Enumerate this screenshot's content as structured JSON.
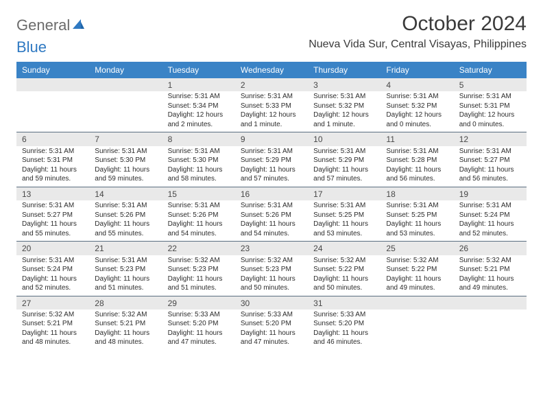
{
  "logo": {
    "word1": "General",
    "word2": "Blue"
  },
  "title": "October 2024",
  "location": "Nueva Vida Sur, Central Visayas, Philippines",
  "colors": {
    "header_bg": "#3a83c6",
    "header_fg": "#ffffff",
    "daynum_bg": "#e9e9e9",
    "rule": "#5a6d80",
    "logo_gray": "#6b6b6b",
    "logo_blue": "#2f79c2"
  },
  "days_of_week": [
    "Sunday",
    "Monday",
    "Tuesday",
    "Wednesday",
    "Thursday",
    "Friday",
    "Saturday"
  ],
  "weeks": [
    [
      null,
      null,
      {
        "n": "1",
        "sr": "Sunrise: 5:31 AM",
        "ss": "Sunset: 5:34 PM",
        "dl": "Daylight: 12 hours and 2 minutes."
      },
      {
        "n": "2",
        "sr": "Sunrise: 5:31 AM",
        "ss": "Sunset: 5:33 PM",
        "dl": "Daylight: 12 hours and 1 minute."
      },
      {
        "n": "3",
        "sr": "Sunrise: 5:31 AM",
        "ss": "Sunset: 5:32 PM",
        "dl": "Daylight: 12 hours and 1 minute."
      },
      {
        "n": "4",
        "sr": "Sunrise: 5:31 AM",
        "ss": "Sunset: 5:32 PM",
        "dl": "Daylight: 12 hours and 0 minutes."
      },
      {
        "n": "5",
        "sr": "Sunrise: 5:31 AM",
        "ss": "Sunset: 5:31 PM",
        "dl": "Daylight: 12 hours and 0 minutes."
      }
    ],
    [
      {
        "n": "6",
        "sr": "Sunrise: 5:31 AM",
        "ss": "Sunset: 5:31 PM",
        "dl": "Daylight: 11 hours and 59 minutes."
      },
      {
        "n": "7",
        "sr": "Sunrise: 5:31 AM",
        "ss": "Sunset: 5:30 PM",
        "dl": "Daylight: 11 hours and 59 minutes."
      },
      {
        "n": "8",
        "sr": "Sunrise: 5:31 AM",
        "ss": "Sunset: 5:30 PM",
        "dl": "Daylight: 11 hours and 58 minutes."
      },
      {
        "n": "9",
        "sr": "Sunrise: 5:31 AM",
        "ss": "Sunset: 5:29 PM",
        "dl": "Daylight: 11 hours and 57 minutes."
      },
      {
        "n": "10",
        "sr": "Sunrise: 5:31 AM",
        "ss": "Sunset: 5:29 PM",
        "dl": "Daylight: 11 hours and 57 minutes."
      },
      {
        "n": "11",
        "sr": "Sunrise: 5:31 AM",
        "ss": "Sunset: 5:28 PM",
        "dl": "Daylight: 11 hours and 56 minutes."
      },
      {
        "n": "12",
        "sr": "Sunrise: 5:31 AM",
        "ss": "Sunset: 5:27 PM",
        "dl": "Daylight: 11 hours and 56 minutes."
      }
    ],
    [
      {
        "n": "13",
        "sr": "Sunrise: 5:31 AM",
        "ss": "Sunset: 5:27 PM",
        "dl": "Daylight: 11 hours and 55 minutes."
      },
      {
        "n": "14",
        "sr": "Sunrise: 5:31 AM",
        "ss": "Sunset: 5:26 PM",
        "dl": "Daylight: 11 hours and 55 minutes."
      },
      {
        "n": "15",
        "sr": "Sunrise: 5:31 AM",
        "ss": "Sunset: 5:26 PM",
        "dl": "Daylight: 11 hours and 54 minutes."
      },
      {
        "n": "16",
        "sr": "Sunrise: 5:31 AM",
        "ss": "Sunset: 5:26 PM",
        "dl": "Daylight: 11 hours and 54 minutes."
      },
      {
        "n": "17",
        "sr": "Sunrise: 5:31 AM",
        "ss": "Sunset: 5:25 PM",
        "dl": "Daylight: 11 hours and 53 minutes."
      },
      {
        "n": "18",
        "sr": "Sunrise: 5:31 AM",
        "ss": "Sunset: 5:25 PM",
        "dl": "Daylight: 11 hours and 53 minutes."
      },
      {
        "n": "19",
        "sr": "Sunrise: 5:31 AM",
        "ss": "Sunset: 5:24 PM",
        "dl": "Daylight: 11 hours and 52 minutes."
      }
    ],
    [
      {
        "n": "20",
        "sr": "Sunrise: 5:31 AM",
        "ss": "Sunset: 5:24 PM",
        "dl": "Daylight: 11 hours and 52 minutes."
      },
      {
        "n": "21",
        "sr": "Sunrise: 5:31 AM",
        "ss": "Sunset: 5:23 PM",
        "dl": "Daylight: 11 hours and 51 minutes."
      },
      {
        "n": "22",
        "sr": "Sunrise: 5:32 AM",
        "ss": "Sunset: 5:23 PM",
        "dl": "Daylight: 11 hours and 51 minutes."
      },
      {
        "n": "23",
        "sr": "Sunrise: 5:32 AM",
        "ss": "Sunset: 5:23 PM",
        "dl": "Daylight: 11 hours and 50 minutes."
      },
      {
        "n": "24",
        "sr": "Sunrise: 5:32 AM",
        "ss": "Sunset: 5:22 PM",
        "dl": "Daylight: 11 hours and 50 minutes."
      },
      {
        "n": "25",
        "sr": "Sunrise: 5:32 AM",
        "ss": "Sunset: 5:22 PM",
        "dl": "Daylight: 11 hours and 49 minutes."
      },
      {
        "n": "26",
        "sr": "Sunrise: 5:32 AM",
        "ss": "Sunset: 5:21 PM",
        "dl": "Daylight: 11 hours and 49 minutes."
      }
    ],
    [
      {
        "n": "27",
        "sr": "Sunrise: 5:32 AM",
        "ss": "Sunset: 5:21 PM",
        "dl": "Daylight: 11 hours and 48 minutes."
      },
      {
        "n": "28",
        "sr": "Sunrise: 5:32 AM",
        "ss": "Sunset: 5:21 PM",
        "dl": "Daylight: 11 hours and 48 minutes."
      },
      {
        "n": "29",
        "sr": "Sunrise: 5:33 AM",
        "ss": "Sunset: 5:20 PM",
        "dl": "Daylight: 11 hours and 47 minutes."
      },
      {
        "n": "30",
        "sr": "Sunrise: 5:33 AM",
        "ss": "Sunset: 5:20 PM",
        "dl": "Daylight: 11 hours and 47 minutes."
      },
      {
        "n": "31",
        "sr": "Sunrise: 5:33 AM",
        "ss": "Sunset: 5:20 PM",
        "dl": "Daylight: 11 hours and 46 minutes."
      },
      null,
      null
    ]
  ]
}
